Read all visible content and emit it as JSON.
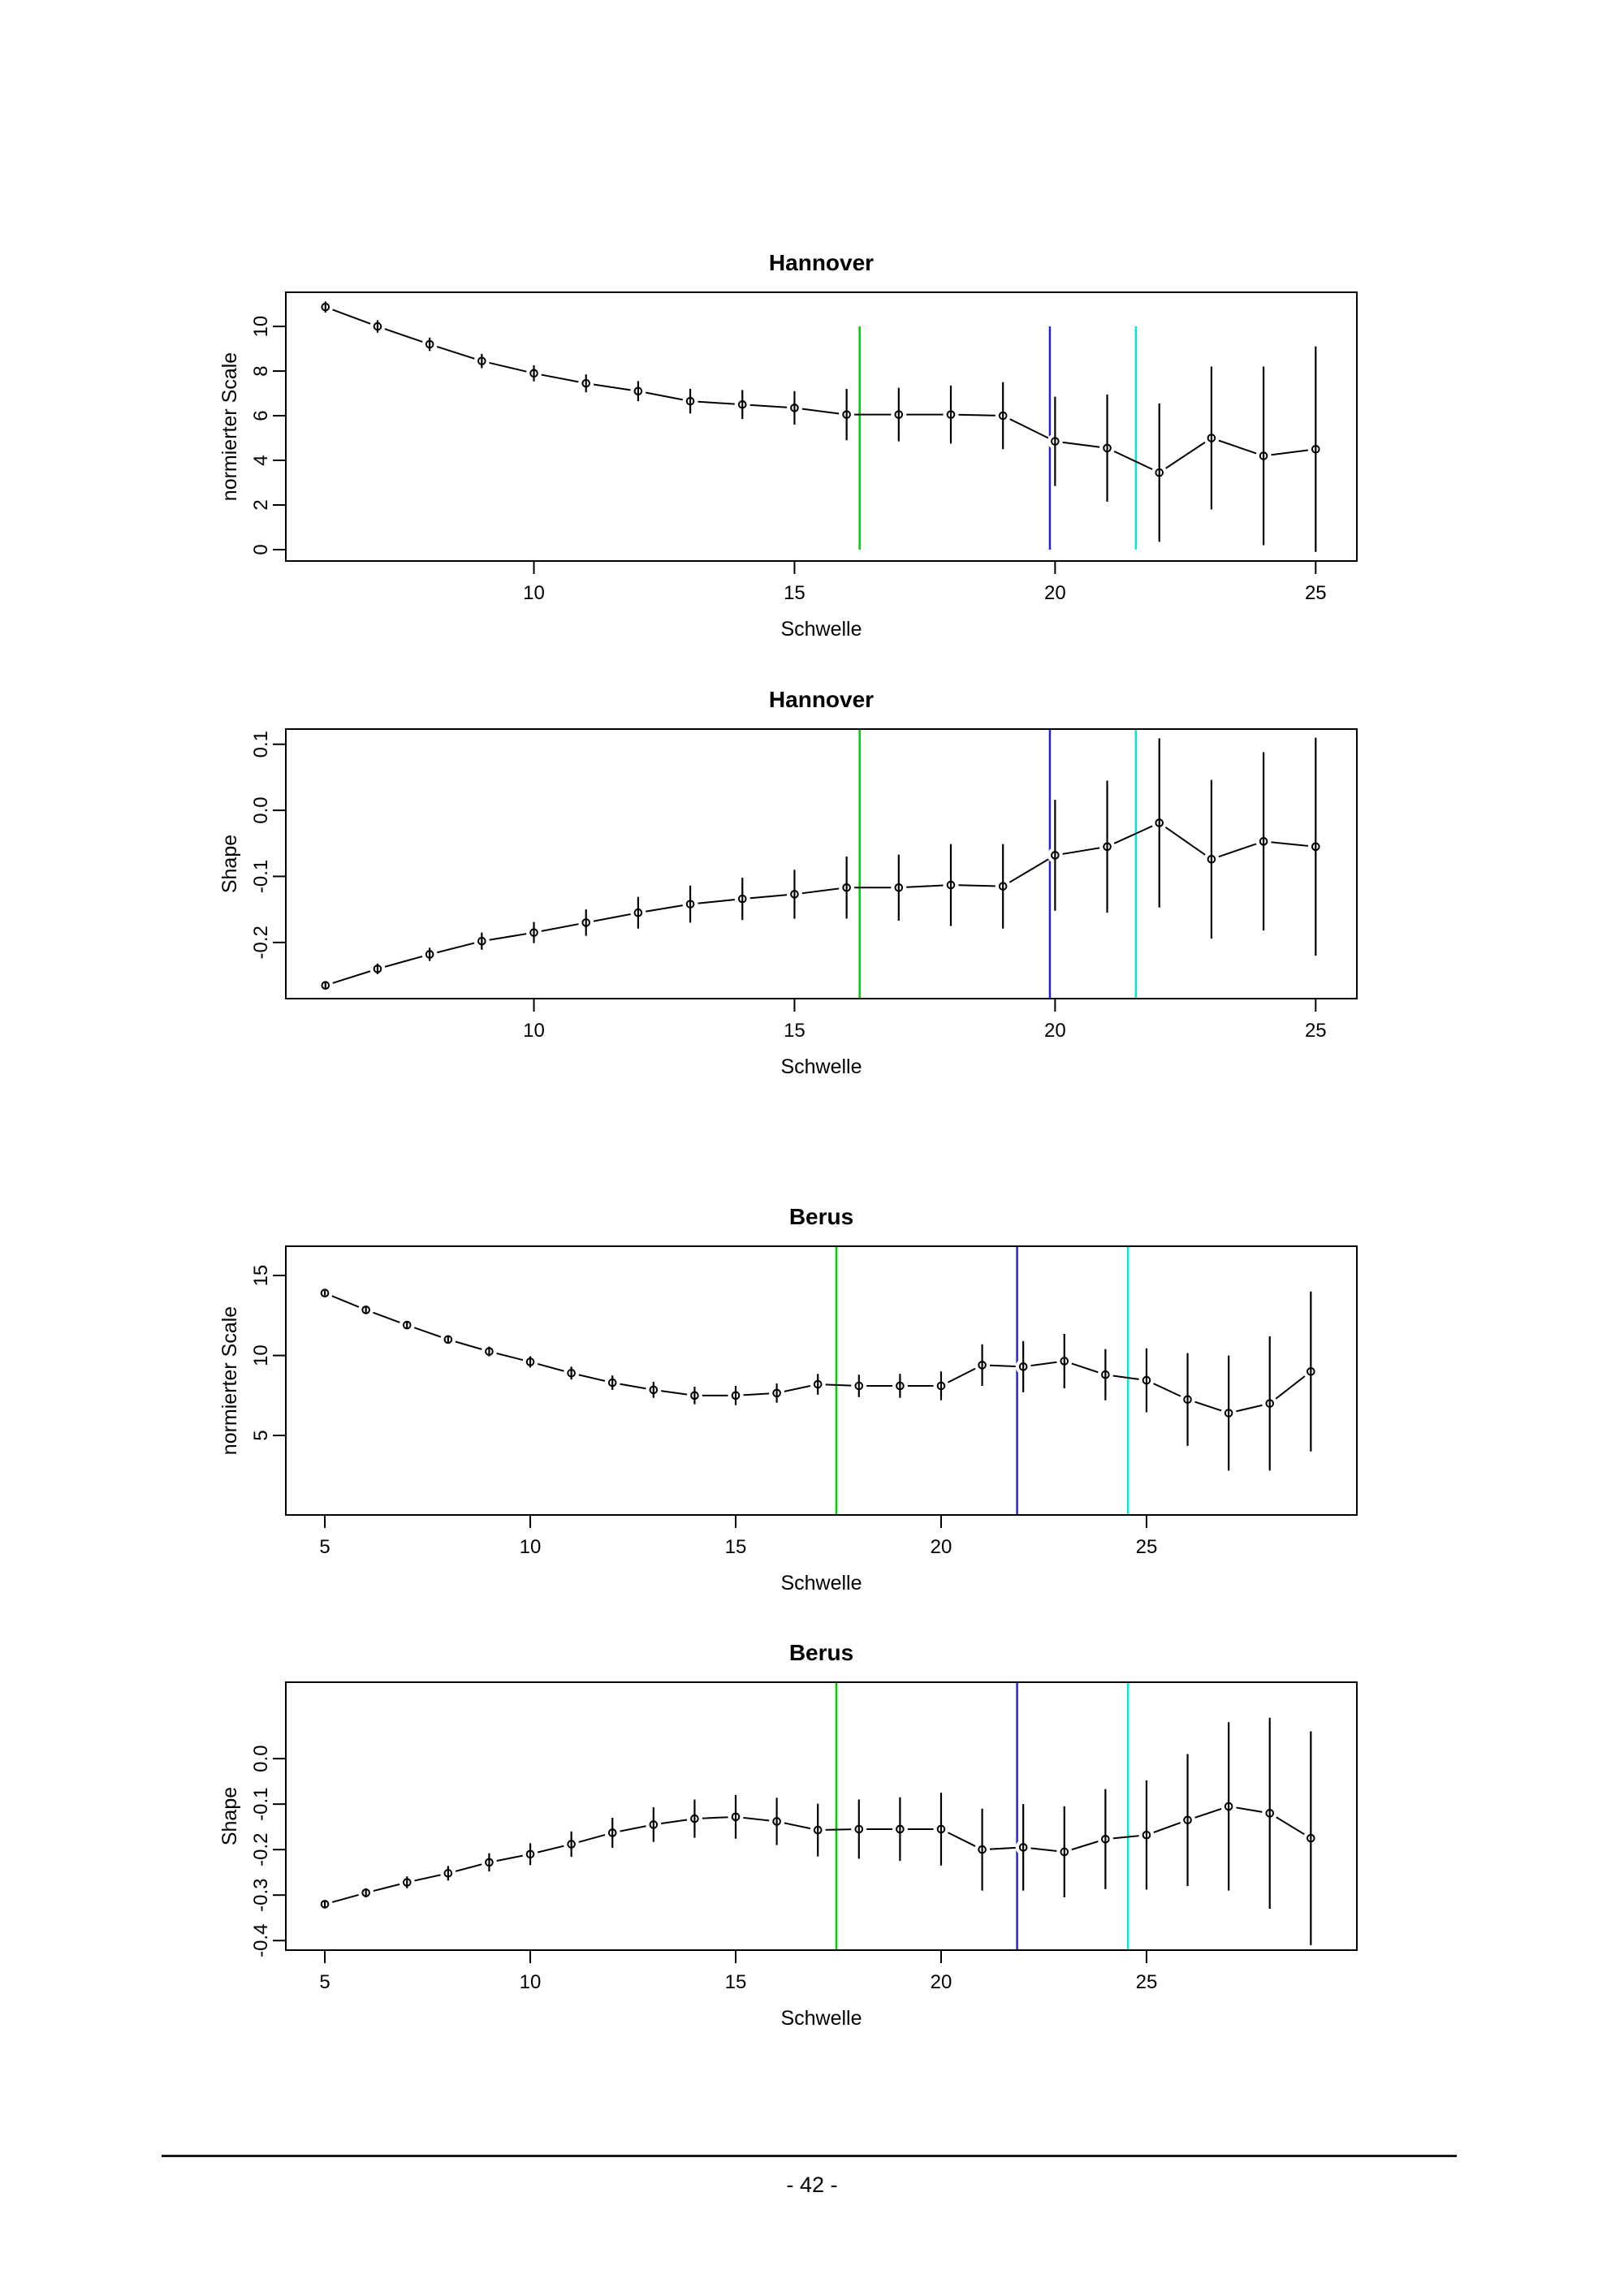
{
  "page": {
    "number_label": "- 42 -"
  },
  "chart_data": [
    {
      "id": "hannover-scale",
      "type": "line",
      "title": "Hannover",
      "xlabel": "Schwelle",
      "ylabel": "normierter Scale",
      "x": [
        6,
        7,
        8,
        9,
        10,
        11,
        12,
        13,
        14,
        15,
        16,
        17,
        18,
        19,
        20,
        21,
        22,
        23,
        24,
        25
      ],
      "y": [
        10.87,
        10.0,
        9.2,
        8.45,
        7.9,
        7.45,
        7.1,
        6.65,
        6.5,
        6.35,
        6.05,
        6.05,
        6.05,
        6.0,
        4.85,
        4.55,
        3.45,
        5.0,
        4.2,
        4.5
      ],
      "err": [
        0.25,
        0.28,
        0.3,
        0.32,
        0.36,
        0.4,
        0.45,
        0.55,
        0.65,
        0.75,
        1.15,
        1.2,
        1.3,
        1.5,
        2.0,
        2.4,
        3.1,
        3.2,
        4.0,
        4.6
      ],
      "xticks": [
        10,
        15,
        20,
        25
      ],
      "xtick_labels": [
        "10",
        "15",
        "20",
        "25"
      ],
      "yticks": [
        0,
        2,
        4,
        6,
        8,
        10
      ],
      "ytick_labels": [
        "0",
        "2",
        "4",
        "6",
        "8",
        "10"
      ],
      "xlim": [
        5.24,
        25.79
      ],
      "ylim": [
        -0.51,
        11.53
      ],
      "grid": false,
      "marker": "open-circle",
      "vlines": [
        {
          "name": "green",
          "x": 16.25,
          "color": "#00cc00",
          "y_from": 0,
          "y_to": 10
        },
        {
          "name": "blue",
          "x": 19.9,
          "color": "#2222dd",
          "y_from": 0,
          "y_to": 10
        },
        {
          "name": "cyan",
          "x": 21.55,
          "color": "#00e5e5",
          "y_from": 0,
          "y_to": 10
        }
      ]
    },
    {
      "id": "hannover-shape",
      "type": "line",
      "title": "Hannover",
      "xlabel": "Schwelle",
      "ylabel": "Shape",
      "x": [
        6,
        7,
        8,
        9,
        10,
        11,
        12,
        13,
        14,
        15,
        16,
        17,
        18,
        19,
        20,
        21,
        22,
        23,
        24,
        25
      ],
      "y": [
        -0.265,
        -0.24,
        -0.218,
        -0.198,
        -0.185,
        -0.17,
        -0.155,
        -0.142,
        -0.134,
        -0.127,
        -0.117,
        -0.117,
        -0.113,
        -0.115,
        -0.068,
        -0.055,
        -0.019,
        -0.074,
        -0.047,
        -0.055
      ],
      "err": [
        0.006,
        0.008,
        0.01,
        0.013,
        0.016,
        0.02,
        0.024,
        0.028,
        0.032,
        0.037,
        0.047,
        0.05,
        0.062,
        0.064,
        0.084,
        0.1,
        0.128,
        0.12,
        0.135,
        0.165
      ],
      "xticks": [
        10,
        15,
        20,
        25
      ],
      "xtick_labels": [
        "10",
        "15",
        "20",
        "25"
      ],
      "yticks": [
        0.1,
        0.0,
        -0.1,
        -0.2
      ],
      "ytick_labels": [
        "0.1",
        "0.0",
        "-0.1",
        "-0.2"
      ],
      "xlim": [
        5.24,
        25.79
      ],
      "ylim": [
        -0.285,
        0.123
      ],
      "grid": false,
      "marker": "open-circle",
      "vlines": [
        {
          "name": "green",
          "x": 16.25,
          "color": "#00cc00"
        },
        {
          "name": "blue",
          "x": 19.9,
          "color": "#2222dd"
        },
        {
          "name": "cyan",
          "x": 21.55,
          "color": "#00e5e5"
        }
      ]
    },
    {
      "id": "berus-scale",
      "type": "line",
      "title": "Berus",
      "xlabel": "Schwelle",
      "ylabel": "normierter Scale",
      "x": [
        5,
        6,
        7,
        8,
        9,
        10,
        11,
        12,
        13,
        14,
        15,
        16,
        17,
        18,
        19,
        20,
        21,
        22,
        23,
        24,
        25,
        26,
        27,
        28,
        29
      ],
      "y": [
        13.9,
        12.85,
        11.9,
        11.0,
        10.25,
        9.6,
        8.9,
        8.3,
        7.85,
        7.5,
        7.5,
        7.65,
        8.2,
        8.1,
        8.1,
        8.1,
        9.4,
        9.3,
        9.65,
        8.8,
        8.45,
        7.25,
        6.4,
        7.0,
        9.0
      ],
      "err": [
        0.15,
        0.2,
        0.22,
        0.25,
        0.3,
        0.35,
        0.4,
        0.45,
        0.5,
        0.55,
        0.6,
        0.6,
        0.65,
        0.7,
        0.75,
        0.9,
        1.3,
        1.6,
        1.7,
        1.6,
        2.0,
        2.9,
        3.6,
        4.2,
        5.0
      ],
      "xticks": [
        5,
        10,
        15,
        20,
        25
      ],
      "xtick_labels": [
        "5",
        "10",
        "15",
        "20",
        "25"
      ],
      "yticks": [
        5,
        10,
        15
      ],
      "ytick_labels": [
        "5",
        "10",
        "15"
      ],
      "xlim": [
        4.05,
        30.12
      ],
      "ylim": [
        0.03,
        16.83
      ],
      "grid": false,
      "marker": "open-circle",
      "vlines": [
        {
          "name": "green",
          "x": 17.45,
          "color": "#00cc00"
        },
        {
          "name": "blue",
          "x": 21.85,
          "color": "#2222dd"
        },
        {
          "name": "cyan",
          "x": 24.55,
          "color": "#00e5e5"
        }
      ]
    },
    {
      "id": "berus-shape",
      "type": "line",
      "title": "Berus",
      "xlabel": "Schwelle",
      "ylabel": "Shape",
      "x": [
        5,
        6,
        7,
        8,
        9,
        10,
        11,
        12,
        13,
        14,
        15,
        16,
        17,
        18,
        19,
        20,
        21,
        22,
        23,
        24,
        25,
        26,
        27,
        28,
        29
      ],
      "y": [
        -0.32,
        -0.295,
        -0.272,
        -0.252,
        -0.228,
        -0.21,
        -0.188,
        -0.163,
        -0.145,
        -0.132,
        -0.128,
        -0.138,
        -0.157,
        -0.155,
        -0.155,
        -0.155,
        -0.2,
        -0.195,
        -0.205,
        -0.177,
        -0.168,
        -0.135,
        -0.105,
        -0.12,
        -0.175
      ],
      "err": [
        0.008,
        0.01,
        0.013,
        0.016,
        0.02,
        0.024,
        0.028,
        0.033,
        0.038,
        0.042,
        0.048,
        0.052,
        0.058,
        0.065,
        0.07,
        0.08,
        0.09,
        0.095,
        0.1,
        0.11,
        0.12,
        0.145,
        0.185,
        0.21,
        0.235
      ],
      "xticks": [
        5,
        10,
        15,
        20,
        25
      ],
      "xtick_labels": [
        "5",
        "10",
        "15",
        "20",
        "25"
      ],
      "yticks": [
        0.0,
        -0.1,
        -0.2,
        -0.3,
        -0.4
      ],
      "ytick_labels": [
        "0.0",
        "-0.1",
        "-0.2",
        "-0.3",
        "-0.4"
      ],
      "xlim": [
        4.05,
        30.12
      ],
      "ylim": [
        -0.421,
        0.168
      ],
      "grid": false,
      "marker": "open-circle",
      "vlines": [
        {
          "name": "green",
          "x": 17.45,
          "color": "#00cc00"
        },
        {
          "name": "blue",
          "x": 21.85,
          "color": "#2222dd"
        },
        {
          "name": "cyan",
          "x": 24.55,
          "color": "#00e5e5"
        }
      ]
    }
  ]
}
